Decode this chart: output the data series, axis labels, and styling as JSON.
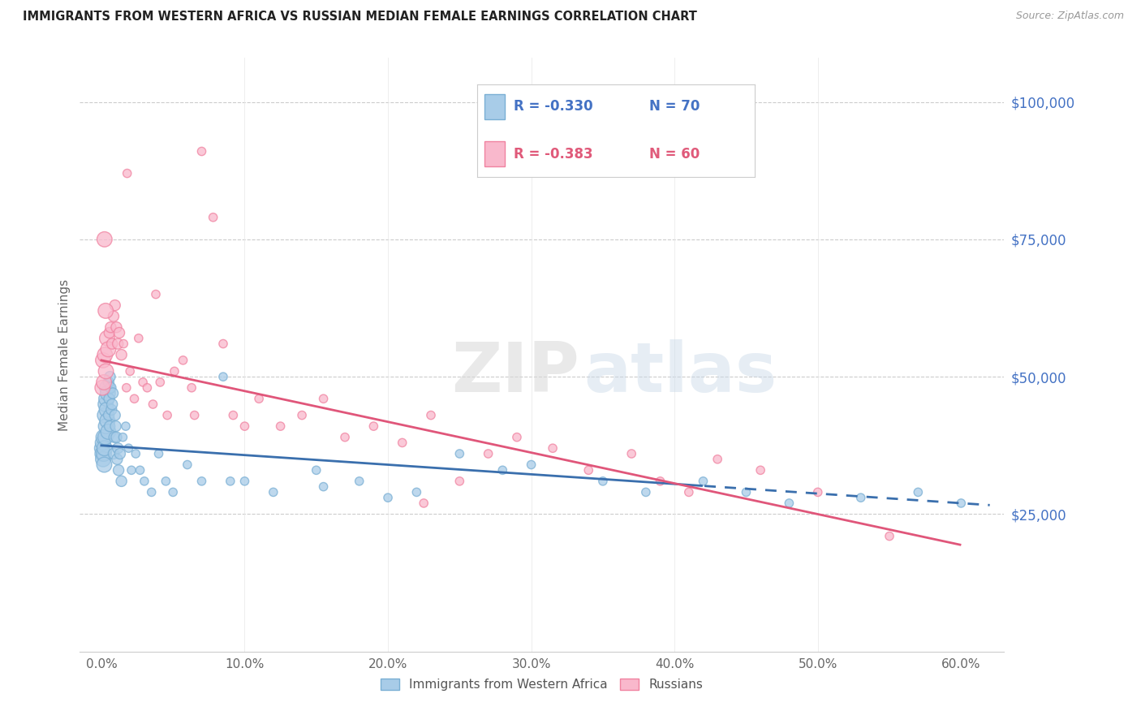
{
  "title": "IMMIGRANTS FROM WESTERN AFRICA VS RUSSIAN MEDIAN FEMALE EARNINGS CORRELATION CHART",
  "source": "Source: ZipAtlas.com",
  "ylabel": "Median Female Earnings",
  "xlabel_ticks": [
    "0.0%",
    "10.0%",
    "20.0%",
    "30.0%",
    "40.0%",
    "50.0%",
    "60.0%"
  ],
  "xlabel_vals": [
    0.0,
    10.0,
    20.0,
    30.0,
    40.0,
    50.0,
    60.0
  ],
  "ytick_labels": [
    "$25,000",
    "$50,000",
    "$75,000",
    "$100,000"
  ],
  "ytick_vals": [
    25000,
    50000,
    75000,
    100000
  ],
  "ylim": [
    0,
    108000
  ],
  "xlim": [
    -1.5,
    63.0
  ],
  "blue_color": "#a8cce8",
  "pink_color": "#f9b8cc",
  "blue_edge_color": "#7aafd4",
  "pink_edge_color": "#f082a0",
  "blue_line_color": "#3a6fad",
  "pink_line_color": "#e0567a",
  "legend_blue_R": "-0.330",
  "legend_blue_N": "70",
  "legend_pink_R": "-0.383",
  "legend_pink_N": "60",
  "legend_label_blue": "Immigrants from Western Africa",
  "legend_label_pink": "Russians",
  "watermark_zip": "ZIP",
  "watermark_atlas": "atlas",
  "blue_intercept": 37500,
  "blue_slope": -175,
  "pink_intercept": 53000,
  "pink_slope": -560,
  "blue_x": [
    0.05,
    0.08,
    0.1,
    0.12,
    0.15,
    0.18,
    0.2,
    0.22,
    0.25,
    0.28,
    0.3,
    0.32,
    0.35,
    0.38,
    0.4,
    0.42,
    0.45,
    0.48,
    0.5,
    0.52,
    0.55,
    0.58,
    0.6,
    0.65,
    0.7,
    0.75,
    0.8,
    0.85,
    0.9,
    0.95,
    1.0,
    1.05,
    1.1,
    1.15,
    1.2,
    1.3,
    1.4,
    1.5,
    1.7,
    1.9,
    2.1,
    2.4,
    2.7,
    3.0,
    3.5,
    4.0,
    4.5,
    5.0,
    6.0,
    7.0,
    8.5,
    10.0,
    12.0,
    15.0,
    18.0,
    20.0,
    22.0,
    25.0,
    28.0,
    30.0,
    35.0,
    38.0,
    42.0,
    45.0,
    48.0,
    53.0,
    57.0,
    60.0,
    15.5,
    9.0
  ],
  "blue_y": [
    37000,
    36000,
    38000,
    35000,
    39000,
    36000,
    34000,
    37000,
    43000,
    39000,
    45000,
    41000,
    46000,
    44000,
    48000,
    42000,
    47000,
    40000,
    49000,
    43000,
    46000,
    41000,
    50000,
    48000,
    44000,
    45000,
    47000,
    36000,
    39000,
    43000,
    41000,
    39000,
    35000,
    37000,
    33000,
    36000,
    31000,
    39000,
    41000,
    37000,
    33000,
    36000,
    33000,
    31000,
    29000,
    36000,
    31000,
    29000,
    34000,
    31000,
    50000,
    31000,
    29000,
    33000,
    31000,
    28000,
    29000,
    36000,
    33000,
    34000,
    31000,
    29000,
    31000,
    29000,
    27000,
    28000,
    29000,
    27000,
    30000,
    31000
  ],
  "pink_x": [
    0.08,
    0.12,
    0.18,
    0.25,
    0.32,
    0.4,
    0.48,
    0.56,
    0.65,
    0.75,
    0.85,
    0.95,
    1.05,
    1.15,
    1.25,
    1.4,
    1.55,
    1.75,
    2.0,
    2.3,
    2.6,
    2.9,
    3.2,
    3.6,
    4.1,
    4.6,
    5.1,
    5.7,
    6.3,
    7.0,
    7.8,
    8.5,
    9.2,
    10.0,
    11.0,
    12.5,
    14.0,
    15.5,
    17.0,
    19.0,
    21.0,
    23.0,
    25.0,
    27.0,
    29.0,
    31.5,
    34.0,
    37.0,
    39.0,
    41.0,
    43.0,
    46.0,
    50.0,
    55.0,
    1.8,
    0.3,
    0.22,
    3.8,
    22.5,
    6.5
  ],
  "pink_y": [
    48000,
    53000,
    49000,
    54000,
    51000,
    57000,
    55000,
    58000,
    59000,
    56000,
    61000,
    63000,
    59000,
    56000,
    58000,
    54000,
    56000,
    48000,
    51000,
    46000,
    57000,
    49000,
    48000,
    45000,
    49000,
    43000,
    51000,
    53000,
    48000,
    91000,
    79000,
    56000,
    43000,
    41000,
    46000,
    41000,
    43000,
    46000,
    39000,
    41000,
    38000,
    43000,
    31000,
    36000,
    39000,
    37000,
    33000,
    36000,
    31000,
    29000,
    35000,
    33000,
    29000,
    21000,
    87000,
    62000,
    75000,
    65000,
    27000,
    43000
  ]
}
